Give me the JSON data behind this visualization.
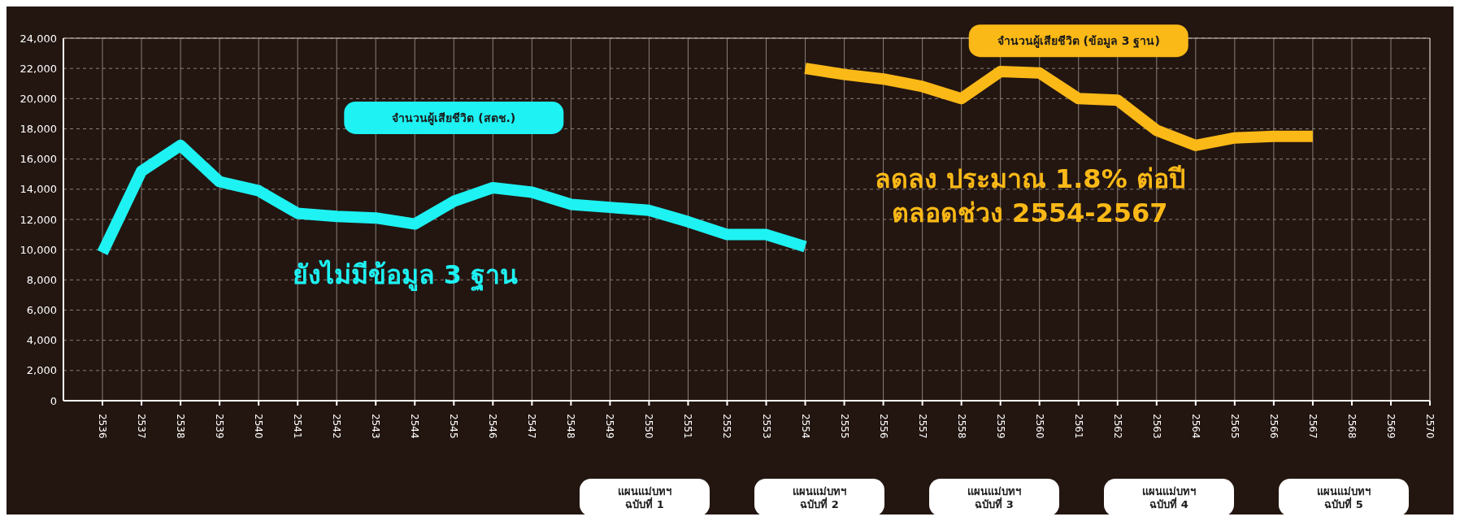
{
  "chart_data": {
    "type": "line",
    "x": [
      2536,
      2537,
      2538,
      2539,
      2540,
      2541,
      2542,
      2543,
      2544,
      2545,
      2546,
      2547,
      2548,
      2549,
      2550,
      2551,
      2552,
      2553,
      2554,
      2555,
      2556,
      2557,
      2558,
      2559,
      2560,
      2561,
      2562,
      2563,
      2564,
      2565,
      2566,
      2567
    ],
    "series": [
      {
        "name": "จำนวนผู้เสียชีวิต (สตช.)",
        "color": "#1ef2f2",
        "values": [
          9800,
          15200,
          16900,
          14500,
          13900,
          12400,
          12200,
          12100,
          11700,
          13200,
          14100,
          13800,
          13000,
          12800,
          12600,
          11850,
          11000,
          11000,
          10200,
          null,
          null,
          null,
          null,
          null,
          null,
          null,
          null,
          null,
          null,
          null,
          null,
          null
        ]
      },
      {
        "name": "จำนวนผู้เสียชีวิต (ข้อมูล 3 ฐาน)",
        "color": "#fbb917",
        "values": [
          null,
          null,
          null,
          null,
          null,
          null,
          null,
          null,
          null,
          null,
          null,
          null,
          null,
          null,
          null,
          null,
          null,
          null,
          22000,
          21600,
          21300,
          20800,
          20000,
          21800,
          21700,
          20000,
          19900,
          17900,
          16900,
          17400,
          17500,
          17500
        ]
      }
    ],
    "xlim": [
      2535,
      2570
    ],
    "xticks": [
      2536,
      2537,
      2538,
      2539,
      2540,
      2541,
      2542,
      2543,
      2544,
      2545,
      2546,
      2547,
      2548,
      2549,
      2550,
      2551,
      2552,
      2553,
      2554,
      2555,
      2556,
      2557,
      2558,
      2559,
      2560,
      2561,
      2562,
      2563,
      2564,
      2565,
      2566,
      2567,
      2568,
      2569,
      2570
    ],
    "ylim": [
      0,
      24000
    ],
    "yticks": [
      0,
      {
        "value": 2000,
        "label": "2,000"
      },
      {
        "value": 4000,
        "label": "4,000"
      },
      {
        "value": 6000,
        "label": "6,000"
      },
      {
        "value": 8000,
        "label": "8,000"
      },
      {
        "value": 10000,
        "label": "10,000"
      },
      {
        "value": 12000,
        "label": "12,000"
      },
      {
        "value": 14000,
        "label": "14,000"
      },
      {
        "value": 16000,
        "label": "16,000"
      },
      {
        "value": 18000,
        "label": "18,000"
      },
      {
        "value": 20000,
        "label": "20,000"
      },
      {
        "value": 22000,
        "label": "22,000"
      },
      {
        "value": 24000,
        "label": "24,000"
      }
    ],
    "grid": true,
    "legend": false,
    "marker": "none",
    "line_style": "solid",
    "annotations": [
      "ยังไม่มีข้อมูล 3 ฐาน",
      "ลดลง ประมาณ 1.8% ต่อปี\nตลอดช่วง 2554-2567",
      "แผนแม่บทฯ\nฉบับที่ 1",
      "แผนแม่บทฯ\nฉบับที่ 2",
      "แผนแม่บทฯ\nฉบับที่ 3",
      "แผนแม่บทฯ\nฉบับที่ 4",
      "แผนแม่บทฯ\nฉบับที่ 5"
    ]
  }
}
